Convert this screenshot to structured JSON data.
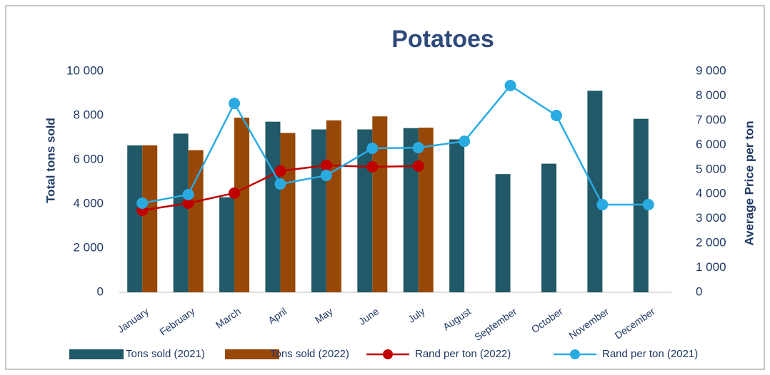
{
  "chart_data": {
    "type": "bar",
    "title": "Potatoes",
    "y_label": "Total tons sold",
    "y2_label": "Average Price per ton",
    "categories": [
      "January",
      "February",
      "March",
      "April",
      "May",
      "June",
      "July",
      "August",
      "September",
      "October",
      "November",
      "December"
    ],
    "series": [
      {
        "name": "Tons sold (2021)",
        "type": "bar",
        "color": "#215968",
        "values": [
          6650,
          7180,
          4300,
          7720,
          7370,
          7370,
          7430,
          6920,
          5350,
          5820,
          9120,
          7850
        ]
      },
      {
        "name": "Tons sold (2022)",
        "type": "bar",
        "color": "#974706",
        "values": [
          6650,
          6430,
          7900,
          7210,
          7780,
          7960,
          7450,
          null,
          null,
          null,
          null,
          null
        ]
      },
      {
        "name": "Rand per ton (2022)",
        "type": "line",
        "axis": "y2",
        "color": "#c00000",
        "values": [
          3340,
          3630,
          4040,
          4940,
          5170,
          5110,
          5140,
          null,
          null,
          null,
          null,
          null
        ]
      },
      {
        "name": "Rand per ton (2021)",
        "type": "line",
        "axis": "y2",
        "color": "#29abe2",
        "values": [
          3630,
          3980,
          7690,
          4410,
          4760,
          5860,
          5890,
          6150,
          8420,
          7200,
          3570,
          3570
        ]
      }
    ],
    "ylim": [
      0,
      10000
    ],
    "yticks": [
      0,
      {
        "value": 2000,
        "label": "2 000"
      },
      {
        "value": 4000,
        "label": "4 000"
      },
      {
        "value": 6000,
        "label": "6 000"
      },
      {
        "value": 8000,
        "label": "8 000"
      },
      {
        "value": 10000,
        "label": "10 000"
      }
    ],
    "y2lim": [
      0,
      9000
    ],
    "y2ticks": [
      0,
      {
        "value": 1000,
        "label": "1 000"
      },
      {
        "value": 2000,
        "label": "2 000"
      },
      {
        "value": 3000,
        "label": "3 000"
      },
      {
        "value": 4000,
        "label": "4 000"
      },
      {
        "value": 5000,
        "label": "5 000"
      },
      {
        "value": 6000,
        "label": "6 000"
      },
      {
        "value": 7000,
        "label": "7 000"
      },
      {
        "value": 8000,
        "label": "8 000"
      },
      {
        "value": 9000,
        "label": "9 000"
      }
    ],
    "grid": false,
    "legend": "bottom"
  }
}
